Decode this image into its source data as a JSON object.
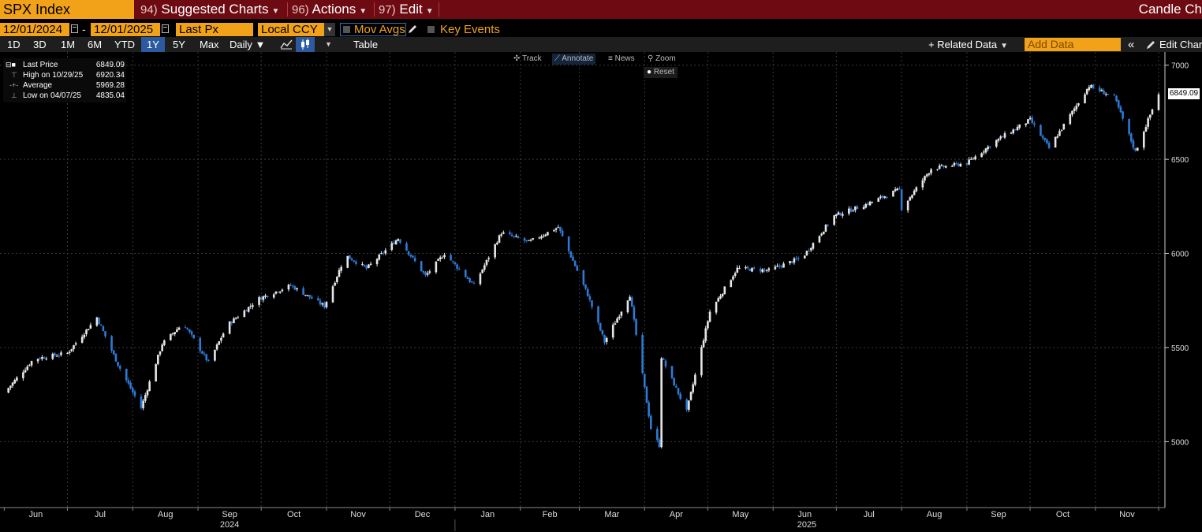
{
  "header": {
    "ticker": "SPX Index",
    "menus": [
      {
        "num": "94)",
        "label": "Suggested Charts"
      },
      {
        "num": "96)",
        "label": "Actions"
      },
      {
        "num": "97)",
        "label": "Edit"
      }
    ],
    "title_right": "Candle Ch"
  },
  "controls": {
    "start_date": "12/01/2024",
    "date_dash": "-",
    "end_date": "12/01/2025",
    "field": "Last Px",
    "currency": "Local CCY",
    "mov_avgs": "Mov Avgs",
    "key_events": "Key Events"
  },
  "range_bar": {
    "ranges": [
      "1D",
      "3D",
      "1M",
      "6M",
      "YTD",
      "1Y",
      "5Y",
      "Max"
    ],
    "selected": "1Y",
    "frequency": "Daily ▼",
    "table": "Table",
    "related_data": "+ Related Data",
    "add_data_placeholder": "Add Data",
    "edit_chart": "Edit Char"
  },
  "chart_toolbar": {
    "track": "Track",
    "annotate": "Annotate",
    "news": "News",
    "zoom": "Zoom",
    "reset": "Reset"
  },
  "legend": {
    "last_price_label": "Last Price",
    "last_price": "6849.09",
    "high_label": "High on 10/29/25",
    "high": "6920.34",
    "average_label": "Average",
    "average": "5969.28",
    "low_label": "Low on 04/07/25",
    "low": "4835.04"
  },
  "colors": {
    "up": "#e6e6e6",
    "down": "#2e7ad4",
    "accent": "#f2a218",
    "header": "#6e0b12"
  },
  "chart_data": {
    "type": "candlestick",
    "ylim": [
      4650,
      7070
    ],
    "y_ticks": [
      7000,
      6500,
      6000,
      5500,
      5000
    ],
    "last_price_label": "6849.09",
    "grid": true,
    "month_labels": [
      "Jun",
      "Jul",
      "Aug",
      "Sep",
      "Oct",
      "Nov",
      "Dec",
      "Jan",
      "Feb",
      "Mar",
      "Apr",
      "May",
      "Jun",
      "Jul",
      "Aug",
      "Sep",
      "Oct",
      "Nov"
    ],
    "year_labels": [
      "2024",
      "2025"
    ],
    "close_anchors": [
      {
        "date": "2024-06-01",
        "close": 5260
      },
      {
        "date": "2024-06-15",
        "close": 5440
      },
      {
        "date": "2024-07-01",
        "close": 5470
      },
      {
        "date": "2024-07-15",
        "close": 5660
      },
      {
        "date": "2024-07-25",
        "close": 5410
      },
      {
        "date": "2024-08-05",
        "close": 5180
      },
      {
        "date": "2024-08-15",
        "close": 5520
      },
      {
        "date": "2024-08-25",
        "close": 5630
      },
      {
        "date": "2024-09-06",
        "close": 5420
      },
      {
        "date": "2024-09-15",
        "close": 5620
      },
      {
        "date": "2024-09-30",
        "close": 5760
      },
      {
        "date": "2024-10-15",
        "close": 5830
      },
      {
        "date": "2024-10-31",
        "close": 5720
      },
      {
        "date": "2024-11-10",
        "close": 5990
      },
      {
        "date": "2024-11-20",
        "close": 5920
      },
      {
        "date": "2024-12-05",
        "close": 6080
      },
      {
        "date": "2024-12-18",
        "close": 5880
      },
      {
        "date": "2024-12-27",
        "close": 6000
      },
      {
        "date": "2025-01-10",
        "close": 5830
      },
      {
        "date": "2025-01-23",
        "close": 6110
      },
      {
        "date": "2025-02-05",
        "close": 6060
      },
      {
        "date": "2025-02-19",
        "close": 6140
      },
      {
        "date": "2025-03-05",
        "close": 5780
      },
      {
        "date": "2025-03-13",
        "close": 5530
      },
      {
        "date": "2025-03-25",
        "close": 5780
      },
      {
        "date": "2025-04-04",
        "close": 5070
      },
      {
        "date": "2025-04-08",
        "close": 4980
      },
      {
        "date": "2025-04-09",
        "close": 5450
      },
      {
        "date": "2025-04-21",
        "close": 5160
      },
      {
        "date": "2025-05-02",
        "close": 5690
      },
      {
        "date": "2025-05-15",
        "close": 5920
      },
      {
        "date": "2025-05-30",
        "close": 5910
      },
      {
        "date": "2025-06-15",
        "close": 5980
      },
      {
        "date": "2025-06-30",
        "close": 6200
      },
      {
        "date": "2025-07-15",
        "close": 6260
      },
      {
        "date": "2025-07-31",
        "close": 6340
      },
      {
        "date": "2025-08-01",
        "close": 6240
      },
      {
        "date": "2025-08-15",
        "close": 6450
      },
      {
        "date": "2025-09-01",
        "close": 6480
      },
      {
        "date": "2025-09-15",
        "close": 6600
      },
      {
        "date": "2025-10-01",
        "close": 6710
      },
      {
        "date": "2025-10-10",
        "close": 6560
      },
      {
        "date": "2025-10-29",
        "close": 6890
      },
      {
        "date": "2025-11-10",
        "close": 6830
      },
      {
        "date": "2025-11-20",
        "close": 6540
      },
      {
        "date": "2025-12-01",
        "close": 6849
      }
    ]
  }
}
